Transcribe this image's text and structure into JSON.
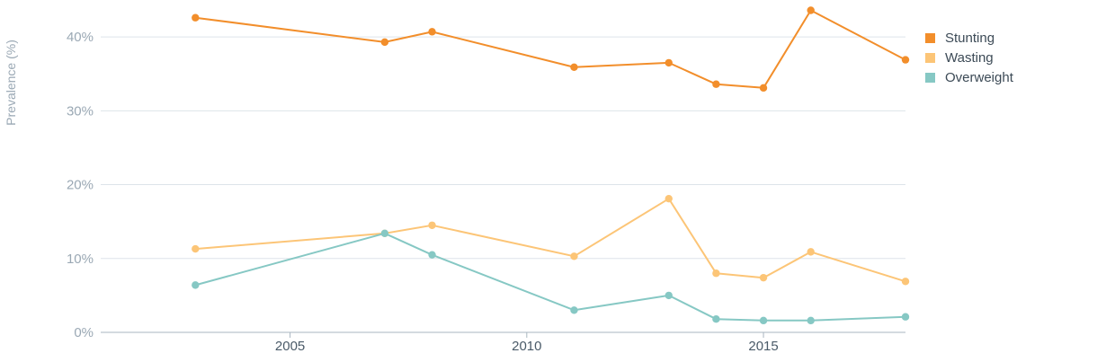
{
  "chart_data": {
    "type": "line",
    "title": "",
    "xlabel": "",
    "ylabel": "Prevalence (%)",
    "xlim": [
      2001.0,
      2018.0
    ],
    "ylim": [
      0,
      45
    ],
    "x_ticks": [
      2005,
      2010,
      2015
    ],
    "x_tick_labels": [
      "2005",
      "2010",
      "2015"
    ],
    "y_ticks": [
      0,
      10,
      20,
      30,
      40
    ],
    "y_tick_labels": [
      "0%",
      "10%",
      "20%",
      "30%",
      "40%"
    ],
    "grid": true,
    "legend_position": "top-right",
    "series": [
      {
        "name": "Stunting",
        "color": "#f28e2b",
        "points": [
          {
            "x": 2003,
            "y": 42.6
          },
          {
            "x": 2007,
            "y": 39.3
          },
          {
            "x": 2008,
            "y": 40.7
          },
          {
            "x": 2011,
            "y": 35.9
          },
          {
            "x": 2013,
            "y": 36.5
          },
          {
            "x": 2014,
            "y": 33.6
          },
          {
            "x": 2015,
            "y": 33.1
          },
          {
            "x": 2016,
            "y": 43.6
          },
          {
            "x": 2018,
            "y": 36.9
          }
        ]
      },
      {
        "name": "Wasting",
        "color": "#fcc577",
        "points": [
          {
            "x": 2003,
            "y": 11.3
          },
          {
            "x": 2007,
            "y": 13.4
          },
          {
            "x": 2008,
            "y": 14.5
          },
          {
            "x": 2011,
            "y": 10.3
          },
          {
            "x": 2013,
            "y": 18.1
          },
          {
            "x": 2014,
            "y": 8.0
          },
          {
            "x": 2015,
            "y": 7.4
          },
          {
            "x": 2016,
            "y": 10.9
          },
          {
            "x": 2018,
            "y": 6.9
          }
        ]
      },
      {
        "name": "Overweight",
        "color": "#86c8c4",
        "points": [
          {
            "x": 2003,
            "y": 6.4
          },
          {
            "x": 2007,
            "y": 13.4
          },
          {
            "x": 2008,
            "y": 10.5
          },
          {
            "x": 2011,
            "y": 3.0
          },
          {
            "x": 2013,
            "y": 5.0
          },
          {
            "x": 2014,
            "y": 1.8
          },
          {
            "x": 2015,
            "y": 1.6
          },
          {
            "x": 2016,
            "y": 1.6
          },
          {
            "x": 2018,
            "y": 2.1
          }
        ]
      }
    ]
  }
}
